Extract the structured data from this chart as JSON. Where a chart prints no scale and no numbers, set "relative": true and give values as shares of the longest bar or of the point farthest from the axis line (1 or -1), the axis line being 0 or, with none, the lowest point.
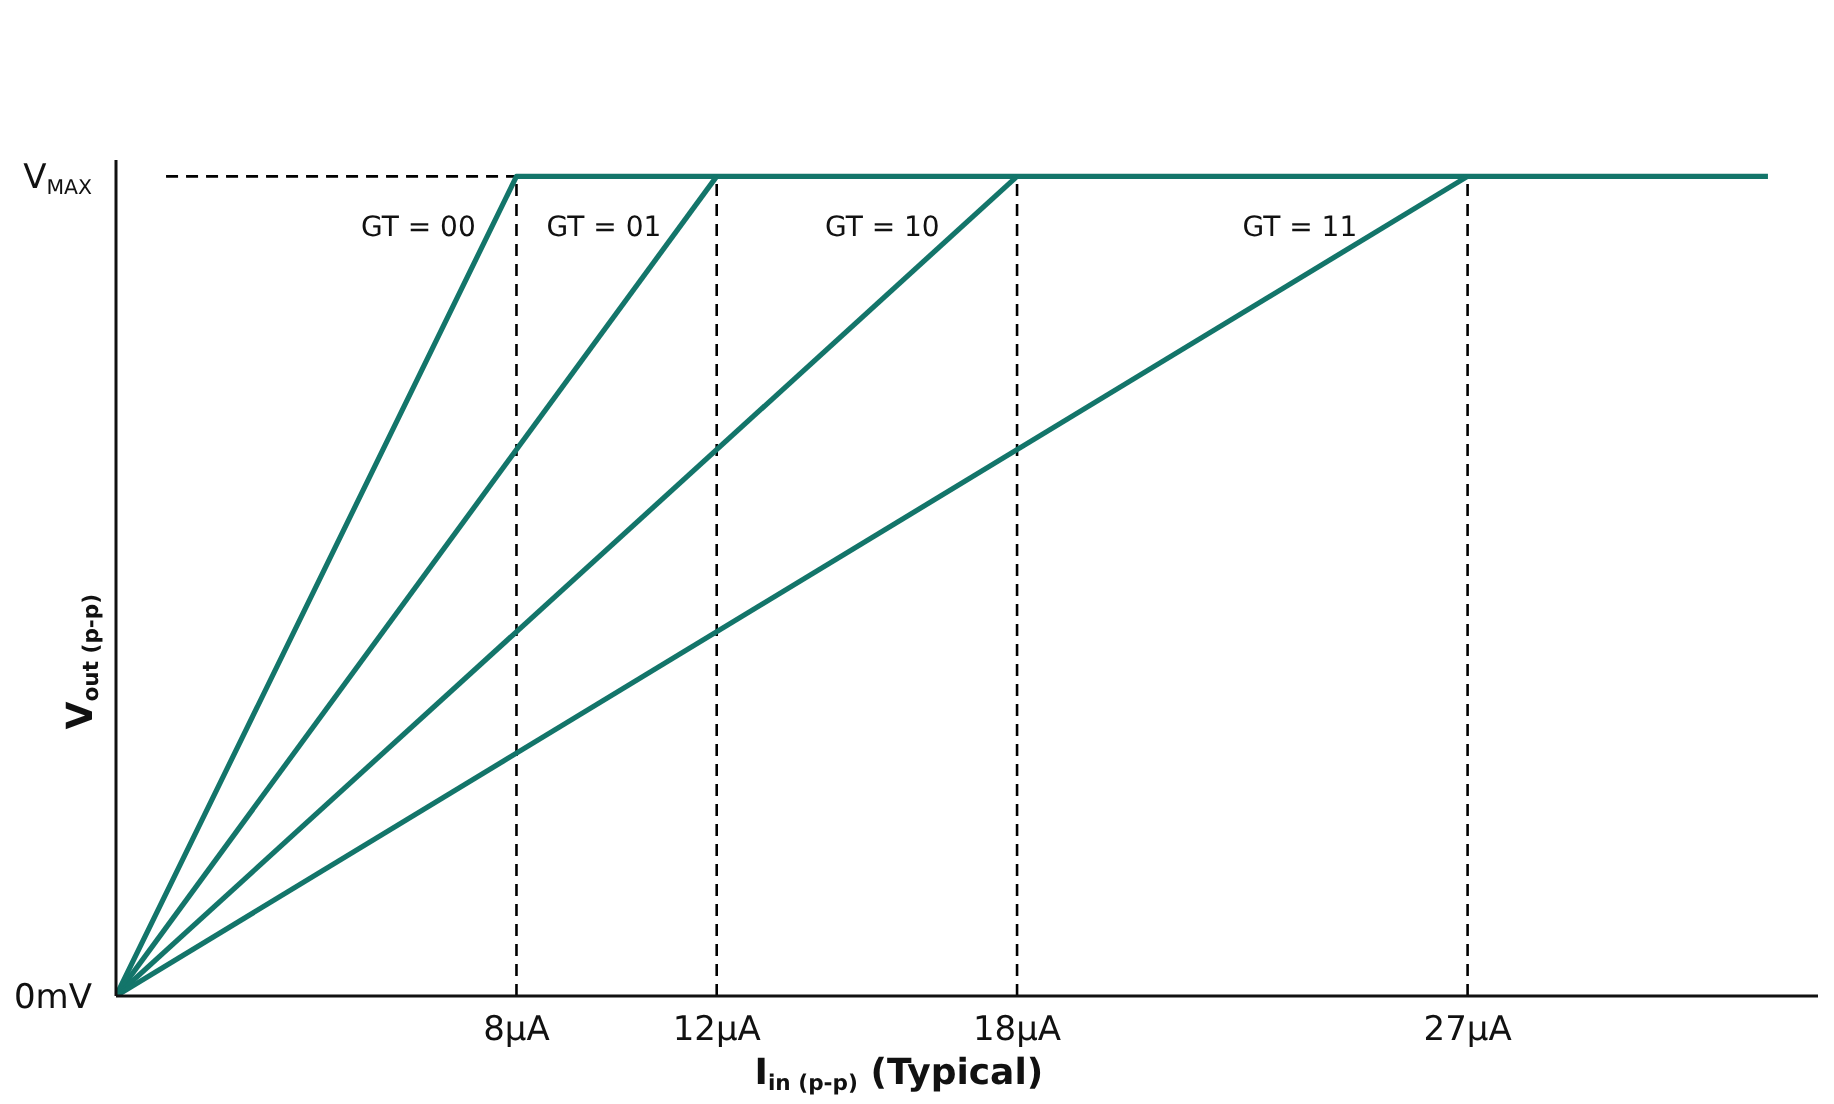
{
  "chart_data": {
    "type": "line",
    "xlabel": "I$_{in (p-p)}$ (Typical)",
    "ylabel": "V$_{out (p-p)}$",
    "xlim": [
      0,
      34
    ],
    "xticks": [
      {
        "value": 8,
        "label": "8µA"
      },
      {
        "value": 12,
        "label": "12µA"
      },
      {
        "value": 18,
        "label": "18µA"
      },
      {
        "value": 27,
        "label": "27µA"
      }
    ],
    "relative": true,
    "annotations": [
      "0mV",
      "V$_{MAX}$"
    ],
    "grid": false,
    "legend": false,
    "marker": "none",
    "series": [
      {
        "color": "#000000",
        "line_style": "dashed",
        "x": [
          1,
          8
        ],
        "values": [
          1,
          1
        ]
      },
      {
        "color": "#000000",
        "line_style": "dashed",
        "x": [
          8,
          8
        ],
        "values": [
          0,
          1
        ]
      },
      {
        "color": "#000000",
        "line_style": "dashed",
        "x": [
          12,
          12
        ],
        "values": [
          0,
          1
        ]
      },
      {
        "color": "#000000",
        "line_style": "dashed",
        "x": [
          18,
          18
        ],
        "values": [
          0,
          1
        ]
      },
      {
        "color": "#000000",
        "line_style": "dashed",
        "x": [
          27,
          27
        ],
        "values": [
          0,
          1
        ]
      },
      {
        "name": "GT = 00",
        "color": "#13756a",
        "line_style": "solid",
        "x": [
          0,
          8,
          33
        ],
        "values": [
          0,
          1,
          1
        ]
      },
      {
        "name": "GT = 01",
        "color": "#13756a",
        "line_style": "solid",
        "x": [
          0,
          12
        ],
        "values": [
          0,
          1
        ]
      },
      {
        "name": "GT = 10",
        "color": "#13756a",
        "line_style": "solid",
        "x": [
          0,
          18
        ],
        "values": [
          0,
          1
        ]
      },
      {
        "name": "GT = 11",
        "color": "#13756a",
        "line_style": "solid",
        "x": [
          0,
          27
        ],
        "values": [
          0,
          1
        ]
      }
    ]
  }
}
